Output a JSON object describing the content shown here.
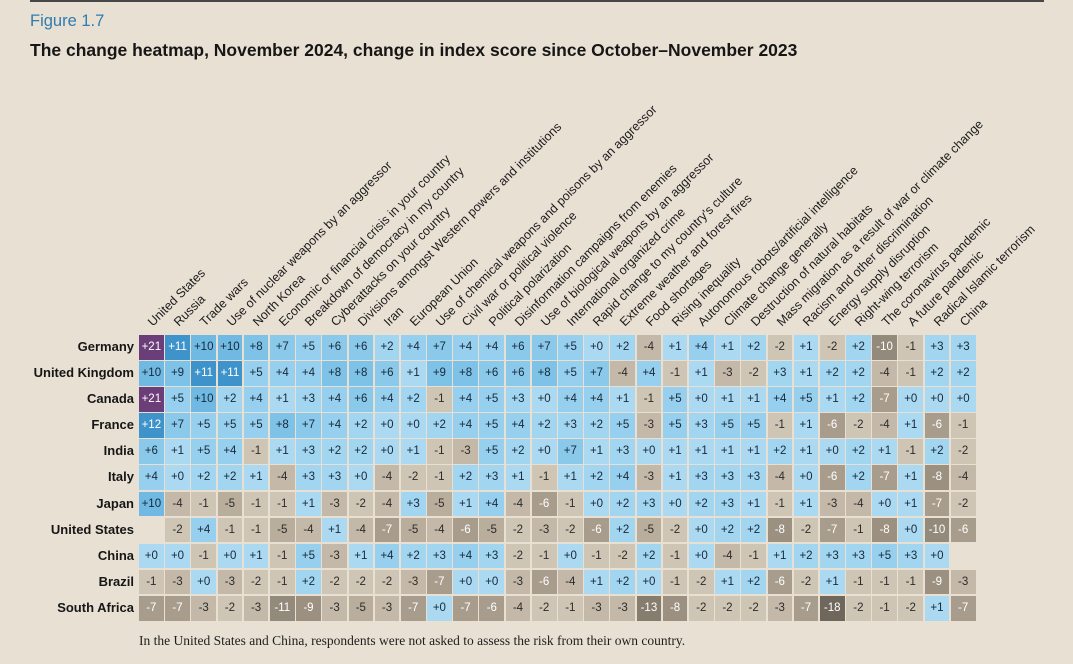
{
  "figure": {
    "label": "Figure 1.7",
    "title": "The change heatmap, November 2024, change in index score since October–November 2023",
    "footnote": "In the United States and China, respondents were not asked to assess the risk from their own country."
  },
  "colors": {
    "background": "#e8e0d3",
    "figure_label": "#2e7cb0",
    "title": "#161616",
    "top_rule": "#474747"
  },
  "chart_data": {
    "type": "heatmap",
    "title": "The change heatmap, November 2024, change in index score since October–November 2023",
    "value_format": "signed integer, positive values prefixed with +",
    "legend_position": "none",
    "columns": [
      "United States",
      "Russia",
      "Trade wars",
      "Use of nuclear weapons by an aggressor",
      "North Korea",
      "Economic or financial crisis in your country",
      "Breakdown of democracy in my country",
      "Cyberattacks on your country",
      "Divisions amongst Western powers and institutions",
      "Iran",
      "European Union",
      "Use of chemical weapons and poisons by an aggressor",
      "Civil war or political violence",
      "Political polarization",
      "Disinformation campaigns from enemies",
      "Use of biological weapons by an aggressor",
      "International organized crime",
      "Rapid change to my country's culture",
      "Extreme weather and forest fires",
      "Food shortages",
      "Rising inequality",
      "Autonomous robots/artificial intelligence",
      "Climate change generally",
      "Destruction of natural habitats",
      "Mass migration as a result of war or climate change",
      "Racism and other discrimination",
      "Energy supply disruption",
      "Right-wing terrorism",
      "The coronavirus pandemic",
      "A future pandemic",
      "Radical Islamic terrorism",
      "China"
    ],
    "rows": [
      "Germany",
      "United Kingdom",
      "Canada",
      "France",
      "India",
      "Italy",
      "Japan",
      "United States",
      "China",
      "Brazil",
      "South Africa"
    ],
    "values": [
      [
        21,
        11,
        10,
        10,
        8,
        7,
        5,
        6,
        6,
        2,
        4,
        7,
        4,
        4,
        6,
        7,
        5,
        0,
        2,
        -4,
        1,
        4,
        1,
        2,
        -2,
        1,
        -2,
        2,
        -10,
        -1,
        3,
        3
      ],
      [
        10,
        9,
        11,
        11,
        5,
        4,
        4,
        8,
        8,
        6,
        1,
        9,
        8,
        6,
        6,
        8,
        5,
        7,
        -4,
        4,
        -1,
        1,
        -3,
        -2,
        3,
        1,
        2,
        2,
        -4,
        -1,
        2,
        2
      ],
      [
        21,
        5,
        10,
        2,
        4,
        1,
        3,
        4,
        6,
        4,
        2,
        -1,
        4,
        5,
        3,
        0,
        4,
        4,
        1,
        -1,
        5,
        0,
        1,
        1,
        4,
        5,
        1,
        2,
        -7,
        0,
        0,
        0
      ],
      [
        12,
        7,
        5,
        5,
        5,
        8,
        7,
        4,
        2,
        0,
        0,
        2,
        4,
        5,
        4,
        2,
        3,
        2,
        5,
        -3,
        5,
        3,
        5,
        5,
        -1,
        1,
        -6,
        -2,
        -4,
        1,
        -6,
        -1
      ],
      [
        6,
        1,
        5,
        4,
        -1,
        1,
        3,
        2,
        2,
        0,
        1,
        -1,
        -3,
        5,
        2,
        0,
        7,
        1,
        3,
        0,
        1,
        1,
        1,
        1,
        2,
        1,
        0,
        2,
        1,
        -1,
        2,
        -2
      ],
      [
        4,
        0,
        2,
        2,
        1,
        -4,
        3,
        3,
        0,
        -4,
        -2,
        -1,
        2,
        3,
        1,
        -1,
        1,
        2,
        4,
        -3,
        1,
        3,
        3,
        3,
        -4,
        0,
        -6,
        2,
        -7,
        1,
        -8,
        -4
      ],
      [
        10,
        -4,
        -1,
        -5,
        -1,
        -1,
        1,
        -3,
        -2,
        -4,
        3,
        -5,
        1,
        4,
        -4,
        -6,
        -1,
        0,
        2,
        3,
        0,
        2,
        3,
        1,
        -1,
        1,
        -3,
        -4,
        0,
        1,
        -7,
        -2
      ],
      [
        null,
        -2,
        4,
        -1,
        -1,
        -5,
        -4,
        1,
        -4,
        -7,
        -5,
        -4,
        -6,
        -5,
        -2,
        -3,
        -2,
        -6,
        2,
        -5,
        -2,
        0,
        2,
        2,
        -8,
        -2,
        -7,
        -1,
        -8,
        0,
        -10,
        -6
      ],
      [
        0,
        0,
        -1,
        0,
        1,
        -1,
        5,
        -3,
        1,
        4,
        2,
        3,
        4,
        3,
        -2,
        -1,
        0,
        -1,
        -2,
        2,
        -1,
        0,
        -4,
        -1,
        1,
        2,
        3,
        3,
        5,
        3,
        0,
        null
      ],
      [
        -1,
        -3,
        0,
        -3,
        -2,
        -1,
        2,
        -2,
        -2,
        -2,
        -3,
        -7,
        0,
        0,
        -3,
        -6,
        -4,
        1,
        2,
        0,
        -1,
        -2,
        1,
        2,
        -6,
        -2,
        1,
        -1,
        -1,
        -1,
        -9,
        -3
      ],
      [
        -7,
        -7,
        -3,
        -2,
        -3,
        -11,
        -9,
        -3,
        -5,
        -3,
        -7,
        0,
        -7,
        -6,
        -4,
        -2,
        -1,
        -3,
        -3,
        -13,
        -8,
        -2,
        -2,
        -2,
        -3,
        -7,
        -18,
        -2,
        -1,
        -2,
        1,
        -7
      ]
    ],
    "color_scale": [
      {
        "min": 20,
        "bg": "#6b3d79",
        "fg": "#ffffff"
      },
      {
        "min": 11,
        "bg": "#3e94ca",
        "fg": "#ffffff"
      },
      {
        "min": 10,
        "bg": "#6fb9e3",
        "fg": "#17293a"
      },
      {
        "min": 8,
        "bg": "#7ec2e7",
        "fg": "#17293a"
      },
      {
        "min": 6,
        "bg": "#8bc9eb",
        "fg": "#17293a"
      },
      {
        "min": 4,
        "bg": "#97cfee",
        "fg": "#17293a"
      },
      {
        "min": 2,
        "bg": "#a2d5f0",
        "fg": "#17293a"
      },
      {
        "min": 0,
        "bg": "#abd9f2",
        "fg": "#17293a"
      },
      {
        "min": -2,
        "bg": "#cfc5b5",
        "fg": "#2b2b2b"
      },
      {
        "min": -4,
        "bg": "#c4b9a8",
        "fg": "#2b2b2b"
      },
      {
        "min": -5,
        "bg": "#b9ae9c",
        "fg": "#2b2b2b"
      },
      {
        "min": -7,
        "bg": "#a89d8d",
        "fg": "#ffffff"
      },
      {
        "min": -9,
        "bg": "#9c9181",
        "fg": "#ffffff"
      },
      {
        "min": -11,
        "bg": "#948a7b",
        "fg": "#ffffff"
      },
      {
        "min": -14,
        "bg": "#877d6e",
        "fg": "#ffffff"
      },
      {
        "min": -99,
        "bg": "#6f675c",
        "fg": "#ffffff"
      }
    ]
  }
}
